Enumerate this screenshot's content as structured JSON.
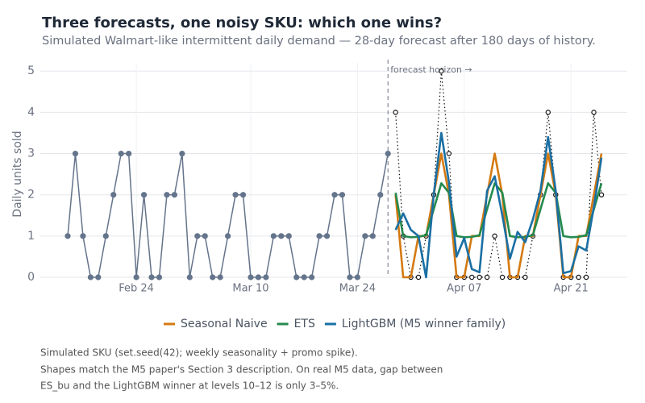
{
  "chart_data": {
    "type": "line",
    "title": "Three forecasts, one noisy SKU: which one wins?",
    "subtitle": "Simulated Walmart-like intermittent daily demand — 28-day forecast after 180 days of history.",
    "y_label": "Daily units sold",
    "x": [
      "Feb 15",
      "Feb 16",
      "Feb 17",
      "Feb 18",
      "Feb 19",
      "Feb 20",
      "Feb 21",
      "Feb 22",
      "Feb 23",
      "Feb 24",
      "Feb 25",
      "Feb 26",
      "Feb 27",
      "Feb 28",
      "Feb 29",
      "Mar 01",
      "Mar 02",
      "Mar 03",
      "Mar 04",
      "Mar 05",
      "Mar 06",
      "Mar 07",
      "Mar 08",
      "Mar 09",
      "Mar 10",
      "Mar 11",
      "Mar 12",
      "Mar 13",
      "Mar 14",
      "Mar 15",
      "Mar 16",
      "Mar 17",
      "Mar 18",
      "Mar 19",
      "Mar 20",
      "Mar 21",
      "Mar 22",
      "Mar 23",
      "Mar 24",
      "Mar 25",
      "Mar 26",
      "Mar 27",
      "Mar 28",
      "Mar 29",
      "Mar 30",
      "Mar 31",
      "Apr 01",
      "Apr 02",
      "Apr 03",
      "Apr 04",
      "Apr 05",
      "Apr 06",
      "Apr 07",
      "Apr 08",
      "Apr 09",
      "Apr 10",
      "Apr 11",
      "Apr 12",
      "Apr 13",
      "Apr 14",
      "Apr 15",
      "Apr 16",
      "Apr 17",
      "Apr 18",
      "Apr 19",
      "Apr 20",
      "Apr 21",
      "Apr 22",
      "Apr 23",
      "Apr 24",
      "Apr 25"
    ],
    "xticks": [
      "Feb 24",
      "Mar 10",
      "Mar 24",
      "Apr 07",
      "Apr 21"
    ],
    "ylim": [
      0,
      5.2
    ],
    "yticks": [
      0,
      1,
      2,
      3,
      4,
      5
    ],
    "grid": true,
    "history": {
      "color": "#64748b",
      "values": [
        1,
        3,
        1,
        0,
        0,
        1,
        2,
        3,
        3,
        0,
        2,
        0,
        0,
        2,
        2,
        3,
        0,
        1,
        1,
        0,
        0,
        1,
        2,
        2,
        0,
        0,
        0,
        1,
        1,
        1,
        0,
        0,
        0,
        1,
        1,
        2,
        2,
        0,
        0,
        1,
        1,
        2,
        3,
        null,
        null,
        null,
        null,
        null,
        null,
        null,
        null,
        null,
        null,
        null,
        null,
        null,
        null,
        null,
        null,
        null,
        null,
        null,
        null,
        null,
        null,
        null,
        null,
        null,
        null,
        null,
        null
      ]
    },
    "actual": {
      "color": "#111111",
      "values": [
        null,
        null,
        null,
        null,
        null,
        null,
        null,
        null,
        null,
        null,
        null,
        null,
        null,
        null,
        null,
        null,
        null,
        null,
        null,
        null,
        null,
        null,
        null,
        null,
        null,
        null,
        null,
        null,
        null,
        null,
        null,
        null,
        null,
        null,
        null,
        null,
        null,
        null,
        null,
        null,
        null,
        null,
        null,
        4,
        1,
        0,
        0,
        1,
        2,
        5,
        3,
        0,
        0,
        0,
        0,
        0,
        1,
        0,
        0,
        0,
        0,
        1,
        2,
        4,
        2,
        0,
        0,
        0,
        0,
        4,
        2
      ]
    },
    "series": [
      {
        "name": "Seasonal Naive",
        "color": "#d47a12",
        "values": [
          null,
          null,
          null,
          null,
          null,
          null,
          null,
          null,
          null,
          null,
          null,
          null,
          null,
          null,
          null,
          null,
          null,
          null,
          null,
          null,
          null,
          null,
          null,
          null,
          null,
          null,
          null,
          null,
          null,
          null,
          null,
          null,
          null,
          null,
          null,
          null,
          null,
          null,
          null,
          null,
          null,
          null,
          null,
          2,
          0,
          0,
          1,
          1,
          2,
          3,
          2,
          0,
          0,
          1,
          1,
          2,
          3,
          2,
          0,
          0,
          1,
          1,
          2,
          3,
          2,
          0,
          0,
          1,
          1,
          2,
          3
        ]
      },
      {
        "name": "ETS",
        "color": "#248a4e",
        "values": [
          null,
          null,
          null,
          null,
          null,
          null,
          null,
          null,
          null,
          null,
          null,
          null,
          null,
          null,
          null,
          null,
          null,
          null,
          null,
          null,
          null,
          null,
          null,
          null,
          null,
          null,
          null,
          null,
          null,
          null,
          null,
          null,
          null,
          null,
          null,
          null,
          null,
          null,
          null,
          null,
          null,
          null,
          null,
          2.05,
          1.0,
          0.97,
          0.98,
          1.02,
          1.65,
          2.28,
          2.05,
          1.0,
          0.97,
          0.98,
          1.02,
          1.65,
          2.28,
          2.05,
          1.0,
          0.97,
          0.98,
          1.02,
          1.65,
          2.28,
          2.05,
          1.0,
          0.97,
          0.98,
          1.02,
          1.65,
          2.28
        ]
      },
      {
        "name": "LightGBM (M5 winner family)",
        "color": "#1a6fa3",
        "values": [
          null,
          null,
          null,
          null,
          null,
          null,
          null,
          null,
          null,
          null,
          null,
          null,
          null,
          null,
          null,
          null,
          null,
          null,
          null,
          null,
          null,
          null,
          null,
          null,
          null,
          null,
          null,
          null,
          null,
          null,
          null,
          null,
          null,
          null,
          null,
          null,
          null,
          null,
          null,
          null,
          null,
          null,
          null,
          1.15,
          1.55,
          1.15,
          1.0,
          0,
          2.0,
          3.5,
          2.3,
          0.5,
          0.95,
          0.2,
          0.12,
          2.1,
          2.45,
          1.5,
          0.45,
          1.1,
          0.85,
          1.4,
          2.1,
          3.4,
          2.1,
          0.1,
          0.15,
          0.75,
          0.65,
          1.7,
          2.9
        ]
      }
    ],
    "annotation": {
      "text": "forecast horizon →",
      "x": "Mar 28"
    },
    "footnotes": [
      "Simulated SKU (set.seed(42); weekly seasonality + promo spike).",
      "Shapes match the M5 paper's Section 3 description. On real M5 data, gap between",
      "ES_bu and the LightGBM winner at levels 10–12 is only 3–5%."
    ]
  }
}
